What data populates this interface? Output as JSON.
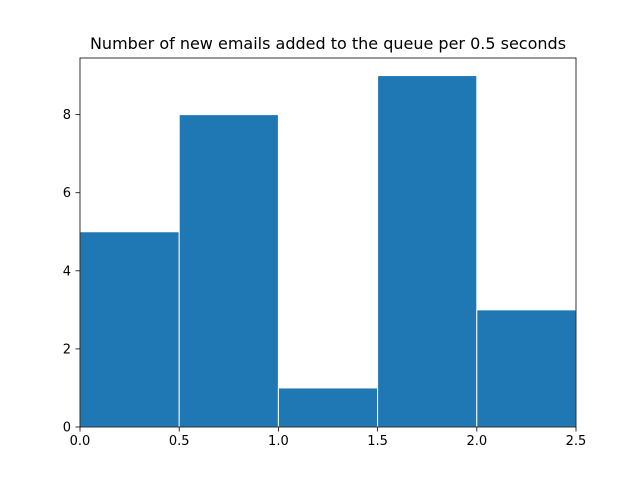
{
  "chart_data": {
    "type": "bar",
    "title": "Number of new emails added to the queue per 0.5 seconds",
    "xlabel": "",
    "ylabel": "",
    "bins": [
      {
        "start": 0.0,
        "end": 0.5,
        "value": 5
      },
      {
        "start": 0.5,
        "end": 1.0,
        "value": 8
      },
      {
        "start": 1.0,
        "end": 1.5,
        "value": 1
      },
      {
        "start": 1.5,
        "end": 2.0,
        "value": 9
      },
      {
        "start": 2.0,
        "end": 2.5,
        "value": 3
      }
    ],
    "xlim": [
      0,
      2.5
    ],
    "ylim": [
      0,
      9.45
    ],
    "x_ticks": [
      0.0,
      0.5,
      1.0,
      1.5,
      2.0,
      2.5
    ],
    "x_tick_labels": [
      "0.0",
      "0.5",
      "1.0",
      "1.5",
      "2.0",
      "2.5"
    ],
    "y_ticks": [
      0,
      2,
      4,
      6,
      8
    ],
    "y_tick_labels": [
      "0",
      "2",
      "4",
      "6",
      "8"
    ],
    "grid": false,
    "bar_color": "#1f77b4",
    "bar_edge_color": "#ffffff"
  }
}
